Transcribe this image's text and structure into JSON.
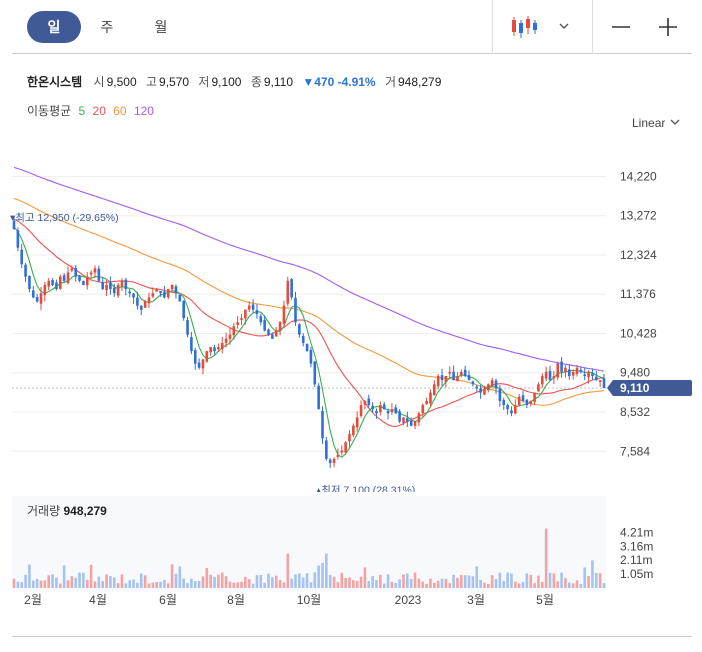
{
  "tabs": [
    {
      "label": "일",
      "active": true
    },
    {
      "label": "주",
      "active": false
    },
    {
      "label": "월",
      "active": false
    }
  ],
  "toolbar": {
    "chart_type_icon": "candlestick-icon",
    "dropdown_icon": "chevron-down-icon",
    "zoom_out_icon": "minus-icon",
    "zoom_in_icon": "plus-icon"
  },
  "quote": {
    "name": "한온시스템",
    "open_label": "시",
    "open": "9,500",
    "high_label": "고",
    "high": "9,570",
    "low_label": "저",
    "low": "9,100",
    "close_label": "종",
    "close": "9,110",
    "change": "▼470 -4.91%",
    "volume_label": "거",
    "volume": "948,279"
  },
  "moving_average": {
    "label": "이동평균",
    "periods": [
      {
        "label": "5",
        "color": "#3cae4f"
      },
      {
        "label": "20",
        "color": "#ef5350"
      },
      {
        "label": "60",
        "color": "#f2993d"
      },
      {
        "label": "120",
        "color": "#a25cf0"
      }
    ]
  },
  "scale_button": "Linear",
  "colors": {
    "up": "#e64a3b",
    "down": "#2e6fd8",
    "current_badge": "#3f5a97",
    "volume_up": "#f2a3a3",
    "volume_down": "#a5c3f0"
  },
  "chart_data": {
    "type": "candlestick",
    "y_ticks": [
      "14,220",
      "13,272",
      "12,324",
      "11,376",
      "10,428",
      "9,480",
      "8,532",
      "7,584"
    ],
    "ylim": [
      6600,
      15100
    ],
    "current_price": {
      "label": "9,110",
      "value": 9110
    },
    "max_annotation": {
      "label": "최고 12,950 (-29.65%)",
      "value": 12950
    },
    "min_annotation": {
      "label": "최저 7,100 (28.31%)",
      "value": 7100
    },
    "x_labels": [
      "2월",
      "4월",
      "6월",
      "8월",
      "10월",
      "2023",
      "3월",
      "5월"
    ],
    "series_close": [
      12950,
      12500,
      12100,
      11800,
      11500,
      11300,
      11200,
      11400,
      11600,
      11700,
      11600,
      11500,
      11800,
      11700,
      11900,
      12000,
      11800,
      11700,
      11600,
      11800,
      11900,
      12000,
      11700,
      11500,
      11600,
      11500,
      11400,
      11600,
      11700,
      11500,
      11400,
      11300,
      11100,
      11000,
      11200,
      11300,
      11400,
      11500,
      11400,
      11300,
      11500,
      11600,
      11400,
      11200,
      10800,
      10400,
      10000,
      9700,
      9600,
      9800,
      10000,
      10100,
      10000,
      10100,
      10200,
      10300,
      10400,
      10600,
      10700,
      10800,
      11000,
      11100,
      11000,
      10900,
      10700,
      10500,
      10400,
      10300,
      10500,
      10700,
      11100,
      11700,
      11300,
      10700,
      10400,
      10200,
      10000,
      9700,
      9200,
      8600,
      7900,
      7400,
      7300,
      7400,
      7500,
      7600,
      7800,
      8000,
      8200,
      8400,
      8700,
      8800,
      8700,
      8600,
      8500,
      8700,
      8600,
      8500,
      8600,
      8500,
      8300,
      8400,
      8300,
      8200,
      8300,
      8500,
      8700,
      8800,
      9000,
      9200,
      9400,
      9300,
      9400,
      9500,
      9300,
      9400,
      9500,
      9400,
      9300,
      9200,
      9100,
      9000,
      9100,
      9200,
      9300,
      9100,
      8800,
      8700,
      8600,
      8500,
      8700,
      8900,
      8800,
      8700,
      8800,
      9000,
      9200,
      9400,
      9500,
      9300,
      9400,
      9700,
      9500,
      9600,
      9400,
      9500,
      9600,
      9500,
      9400,
      9500,
      9400,
      9300,
      9300,
      9110
    ],
    "volume_scale": {
      "ticks": [
        "4.21m",
        "3.16m",
        "2.11m",
        "1.05m"
      ],
      "max": 5300000
    },
    "volume_label": "거래량",
    "volume_value": "948,279"
  }
}
